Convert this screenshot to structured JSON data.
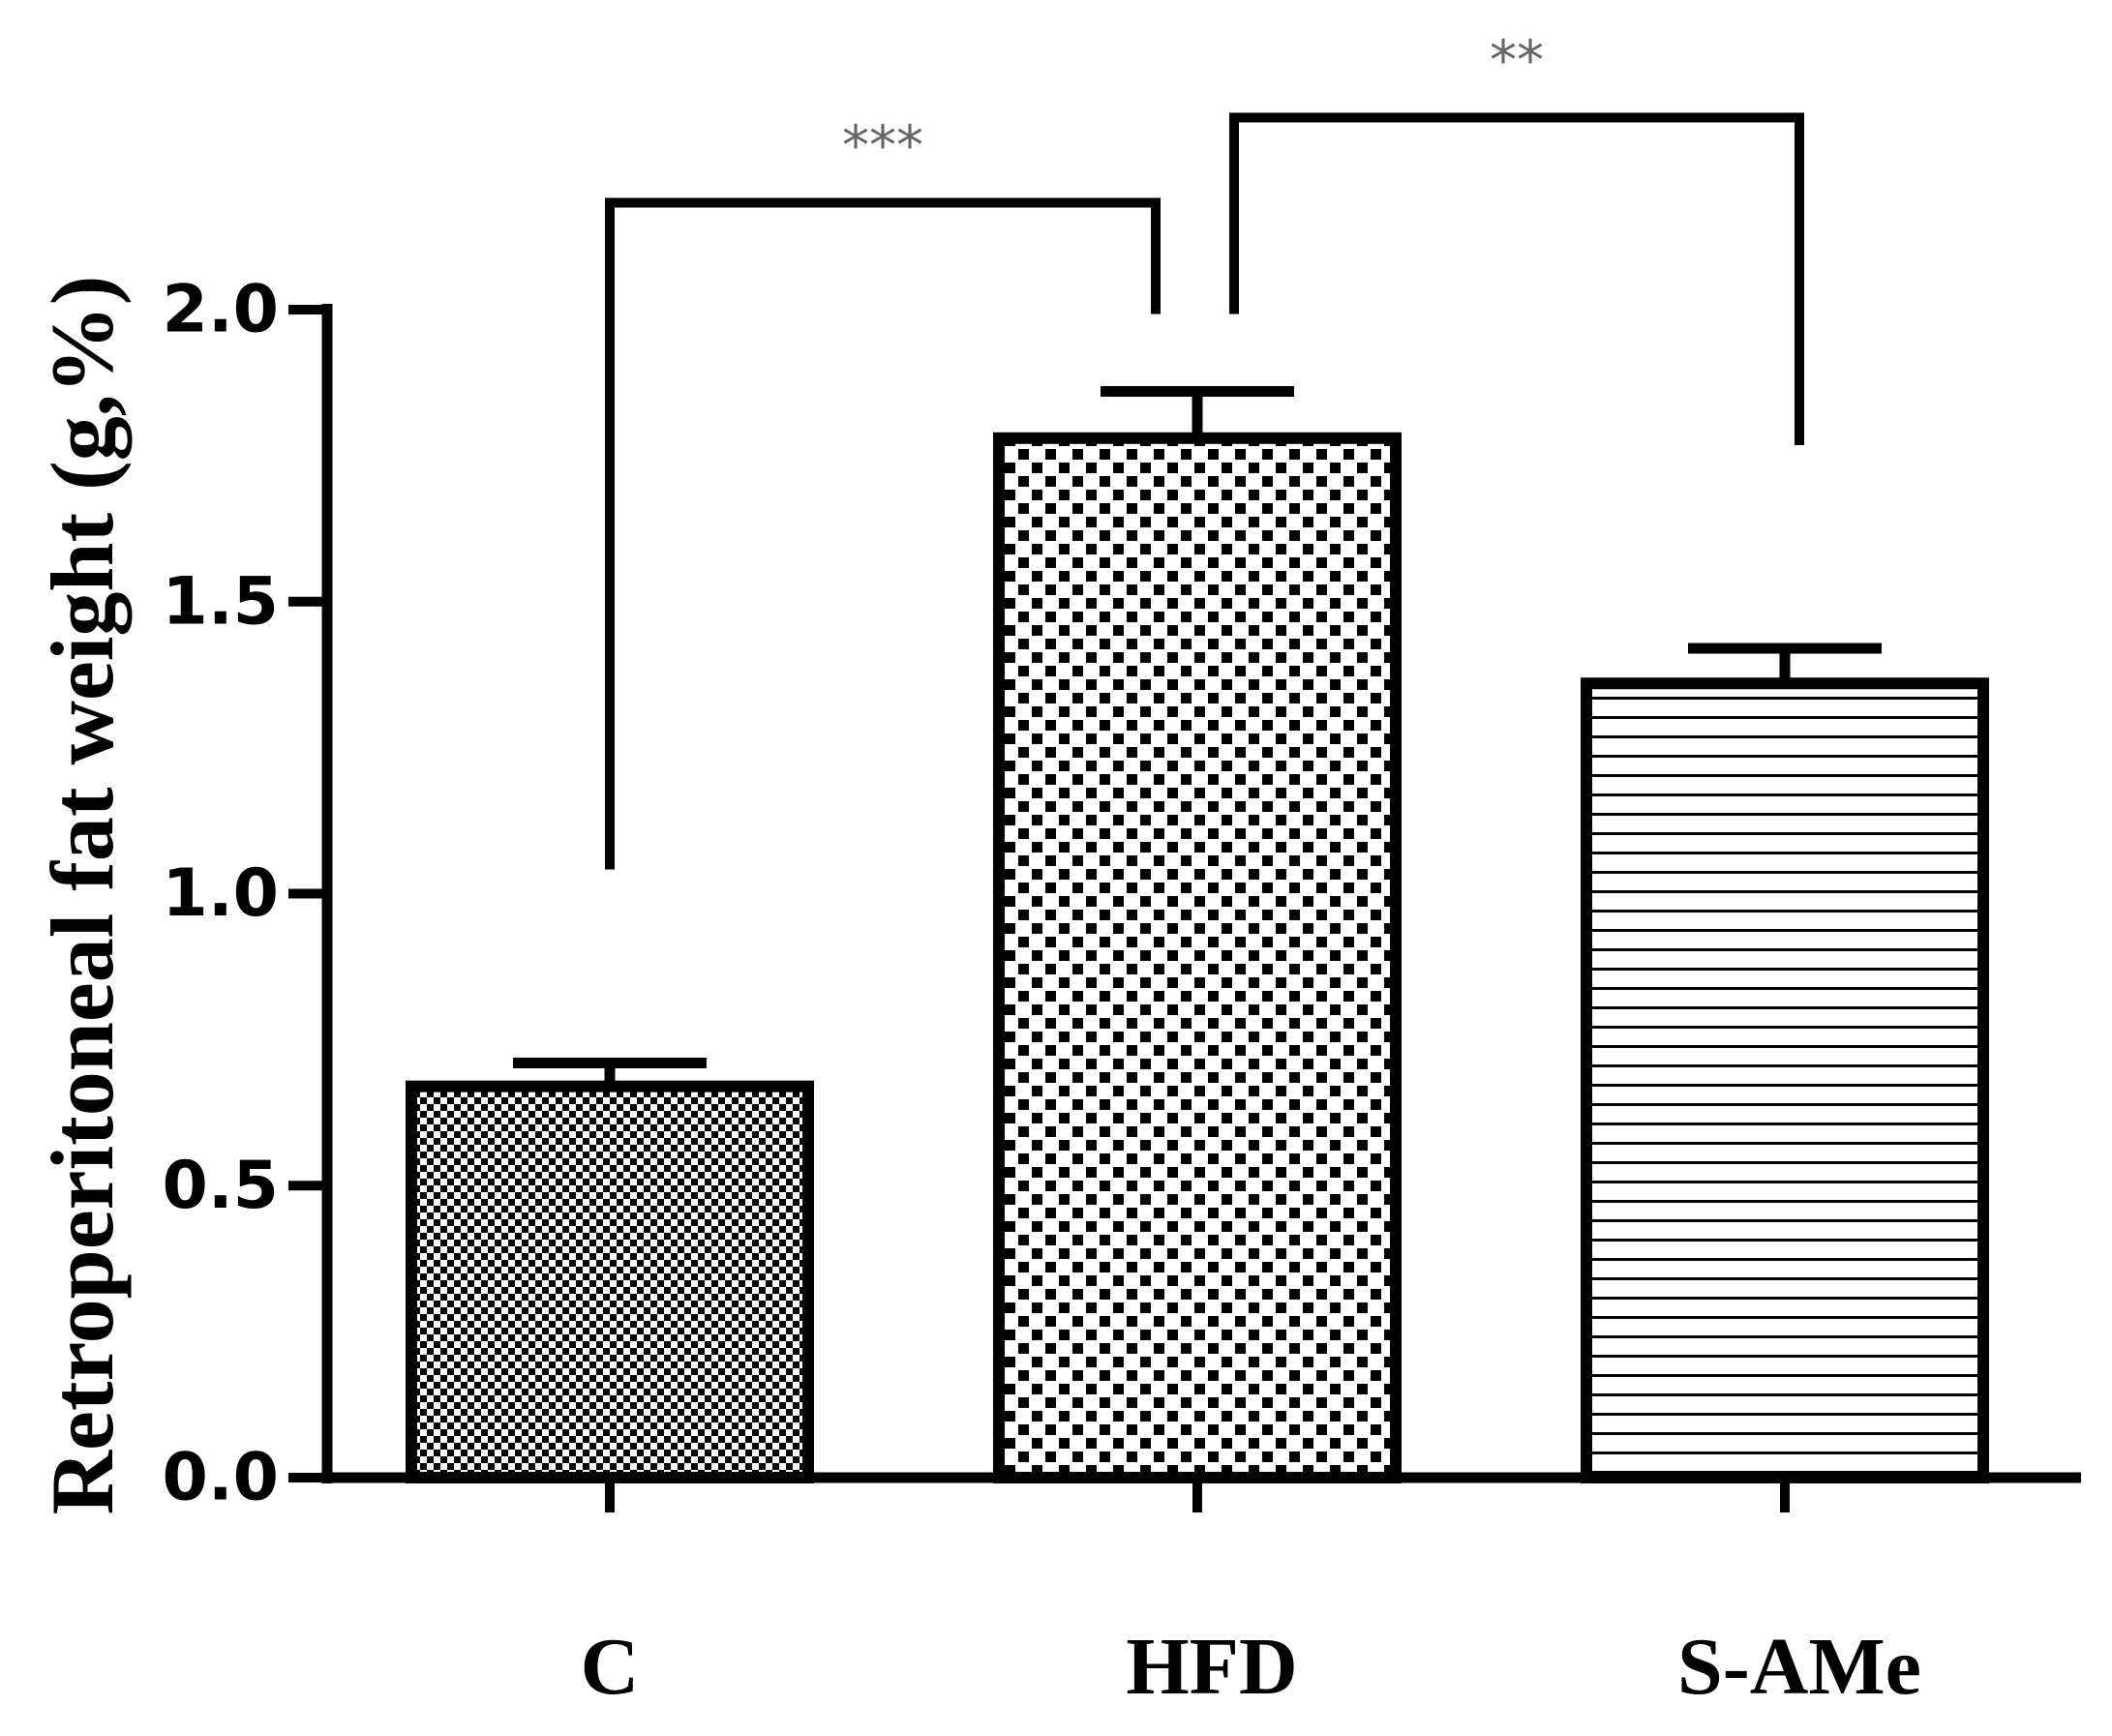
{
  "chart_data": {
    "type": "bar",
    "y_label": "Retroperitoneal fat weight (g,%)",
    "categories": [
      "C",
      "HFD",
      "S-AMe"
    ],
    "values": [
      0.67,
      1.78,
      1.36
    ],
    "errors": [
      0.04,
      0.08,
      0.06
    ],
    "ylim": [
      0,
      2.0
    ],
    "yticks": [
      {
        "value": 0,
        "label": "0.0"
      },
      0.5,
      {
        "value": 1,
        "label": "1.0"
      },
      1.5,
      {
        "value": 2,
        "label": "2.0"
      }
    ],
    "annotations": [
      "***",
      "**"
    ],
    "color": "#000000"
  }
}
